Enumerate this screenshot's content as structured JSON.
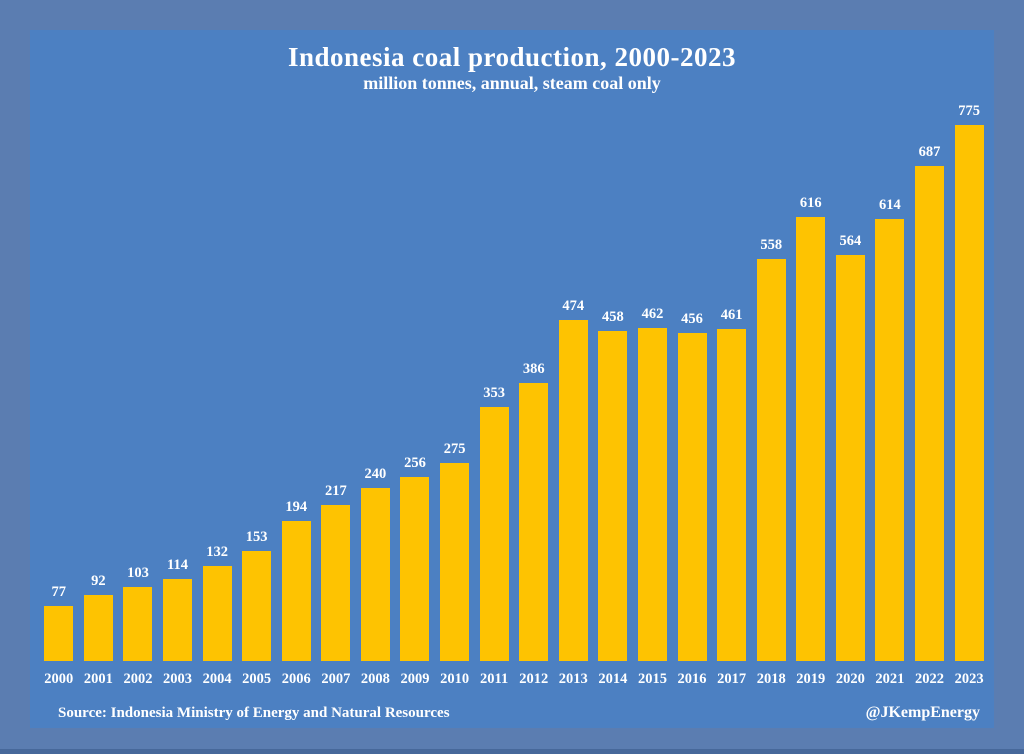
{
  "chart_data": {
    "type": "bar",
    "title": "Indonesia coal production, 2000-2023",
    "subtitle": "million tonnes, annual, steam coal only",
    "categories": [
      "2000",
      "2001",
      "2002",
      "2003",
      "2004",
      "2005",
      "2006",
      "2007",
      "2008",
      "2009",
      "2010",
      "2011",
      "2012",
      "2013",
      "2014",
      "2015",
      "2016",
      "2017",
      "2018",
      "2019",
      "2020",
      "2021",
      "2022",
      "2023"
    ],
    "values": [
      77,
      92,
      103,
      114,
      132,
      153,
      194,
      217,
      240,
      256,
      275,
      353,
      386,
      474,
      458,
      462,
      456,
      461,
      558,
      616,
      564,
      614,
      687,
      775
    ],
    "ylim": [
      0,
      775
    ],
    "grid": false,
    "legend": "none",
    "value_labels": true,
    "xlabel": "",
    "ylabel": ""
  },
  "footer": {
    "source": "Source: Indonesia  Ministry of Energy and Natural Resources",
    "handle": "@JKempEnergy"
  },
  "colors": {
    "outer_background": "#5B7DB1",
    "panel_background": "#4C80C2",
    "bar": "#FEC301",
    "text": "#FFFFFF",
    "bottom_strip": "#47689A"
  }
}
